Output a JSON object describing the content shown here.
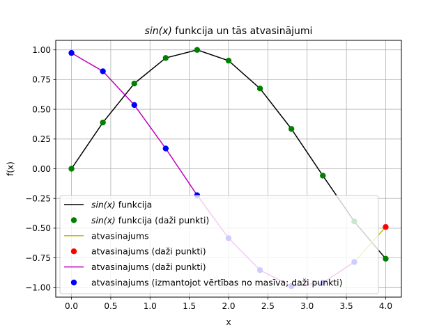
{
  "chart_data": {
    "type": "line",
    "title_plain": "sin(x) funkcija un tās atvasinājumi",
    "title_math": "sin(x)",
    "title_rest": " funkcija un tās atvasinājumi",
    "xlabel": "x",
    "ylabel": "f(x)",
    "xlim": [
      -0.2,
      4.2
    ],
    "ylim": [
      -1.08,
      1.08
    ],
    "grid": true,
    "legend_position": "lower left",
    "x_ticks": [
      "0.0",
      "0.5",
      "1.0",
      "1.5",
      "2.0",
      "2.5",
      "3.0",
      "3.5",
      "4.0"
    ],
    "x_tick_values": [
      0,
      0.5,
      1,
      1.5,
      2,
      2.5,
      3,
      3.5,
      4
    ],
    "y_ticks": [
      "1.00",
      "0.75",
      "0.50",
      "0.25",
      "0.00",
      "−0.25",
      "−0.50",
      "−0.75",
      "−1.00"
    ],
    "y_tick_values": [
      1,
      0.75,
      0.5,
      0.25,
      0,
      -0.25,
      -0.5,
      -0.75,
      -1
    ],
    "x": [
      0.0,
      0.4,
      0.8,
      1.2,
      1.6,
      2.0,
      2.4,
      2.8,
      3.2,
      3.6,
      4.0
    ],
    "series": [
      {
        "name": "sin(x) funkcija",
        "kind": "line",
        "color": "#000000",
        "x": [
          0.0,
          0.4,
          0.8,
          1.2,
          1.6,
          2.0,
          2.4,
          2.8,
          3.2,
          3.6,
          4.0
        ],
        "values": [
          0.0,
          0.389,
          0.717,
          0.932,
          0.9996,
          0.909,
          0.675,
          0.335,
          -0.058,
          -0.443,
          -0.757
        ]
      },
      {
        "name": "sin(x) funkcija (daži punkti)",
        "kind": "points",
        "color": "#008000",
        "x": [
          0.0,
          0.4,
          0.8,
          1.2,
          1.6,
          2.0,
          2.4,
          2.8,
          3.2,
          3.6,
          4.0
        ],
        "values": [
          0.0,
          0.389,
          0.717,
          0.932,
          0.9996,
          0.909,
          0.675,
          0.335,
          -0.058,
          -0.443,
          -0.757
        ]
      },
      {
        "name": "atvasinajums",
        "kind": "line",
        "color": "#bfbf00",
        "x": [
          3.6,
          4.0
        ],
        "values": [
          -0.785,
          -0.49
        ]
      },
      {
        "name": "atvasinajums (daži punkti)",
        "kind": "points",
        "color": "#ff0000",
        "x": [
          4.0
        ],
        "values": [
          -0.49
        ]
      },
      {
        "name": "atvasinajums (daži punkti)",
        "kind": "line",
        "color": "#bf00bf",
        "x": [
          0.0,
          0.4,
          0.8,
          1.2,
          1.6,
          2.0,
          2.4,
          2.8,
          3.2,
          3.6
        ],
        "values": [
          0.974,
          0.82,
          0.536,
          0.17,
          -0.223,
          -0.584,
          -0.853,
          -0.987,
          -0.959,
          -0.785
        ]
      },
      {
        "name": "atvasinajums (izmantojot vērtības no masīva; daži punkti)",
        "kind": "points",
        "color": "#0000ff",
        "x": [
          0.0,
          0.4,
          0.8,
          1.2,
          1.6,
          2.0,
          2.4,
          2.8,
          3.2,
          3.6
        ],
        "values": [
          0.974,
          0.82,
          0.536,
          0.17,
          -0.223,
          -0.584,
          -0.853,
          -0.987,
          -0.959,
          -0.785
        ]
      }
    ],
    "legend": [
      {
        "kind": "line",
        "color": "#000000",
        "math": "sin(x)",
        "text": " funkcija"
      },
      {
        "kind": "point",
        "color": "#008000",
        "math": "sin(x)",
        "text": " funkcija (daži punkti)"
      },
      {
        "kind": "line",
        "color": "#bfbf00",
        "math": "",
        "text": "atvasinajums"
      },
      {
        "kind": "point",
        "color": "#ff0000",
        "math": "",
        "text": "atvasinajums (daži punkti)"
      },
      {
        "kind": "line",
        "color": "#bf00bf",
        "math": "",
        "text": "atvasinajums (daži punkti)"
      },
      {
        "kind": "point",
        "color": "#0000ff",
        "math": "",
        "text": "atvasinajums (izmantojot vērtības no masīva; daži punkti)"
      }
    ]
  }
}
